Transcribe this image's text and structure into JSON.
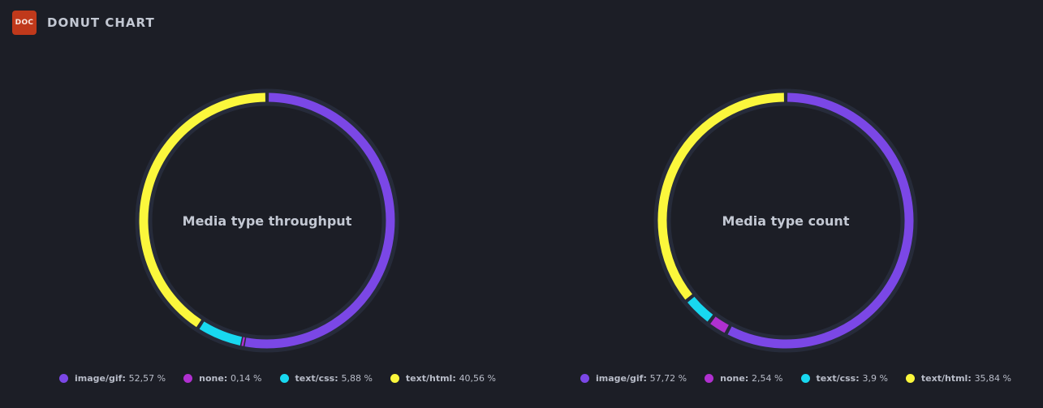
{
  "header": {
    "badge": "DOC",
    "title": "DONUT CHART"
  },
  "colors": {
    "background": "#1c1e26",
    "track": "#262b3a",
    "image_gif": "#7b47e6",
    "none": "#b030d0",
    "text_css": "#18d8f0",
    "text_html": "#fbf73c"
  },
  "chart_data": [
    {
      "type": "pie",
      "title": "Media type throughput",
      "donut": true,
      "categories": [
        "image/gif",
        "none",
        "text/css",
        "text/html"
      ],
      "values": [
        52.57,
        0.14,
        5.88,
        40.56
      ],
      "value_labels": [
        "52,57 %",
        "0,14 %",
        "5,88 %",
        "40,56 %"
      ],
      "unit": "%",
      "legend_position": "bottom",
      "colors": [
        "#7b47e6",
        "#b030d0",
        "#18d8f0",
        "#fbf73c"
      ]
    },
    {
      "type": "pie",
      "title": "Media type count",
      "donut": true,
      "categories": [
        "image/gif",
        "none",
        "text/css",
        "text/html"
      ],
      "values": [
        57.72,
        2.54,
        3.9,
        35.84
      ],
      "value_labels": [
        "57,72 %",
        "2,54 %",
        "3,9 %",
        "35,84 %"
      ],
      "unit": "%",
      "legend_position": "bottom",
      "colors": [
        "#7b47e6",
        "#b030d0",
        "#18d8f0",
        "#fbf73c"
      ]
    }
  ]
}
